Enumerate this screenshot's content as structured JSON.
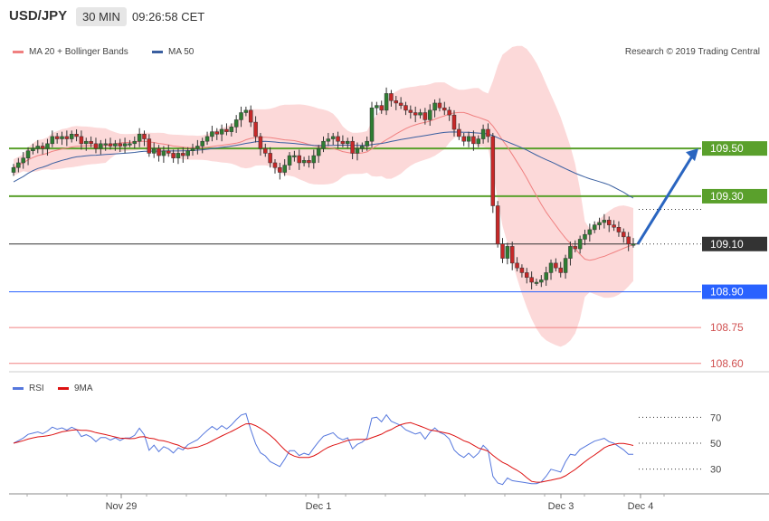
{
  "header": {
    "symbol": "USD/JPY",
    "timeframe": "30 MIN",
    "time": "09:26:58 CET"
  },
  "legend": {
    "ma20_label": "MA 20 + Bollinger Bands",
    "ma50_label": "MA 50",
    "ma20_color": "#f08080",
    "ma50_color": "#3a5fa0"
  },
  "credit": "Research © 2019 Trading Central",
  "rsi_legend": {
    "rsi_label": "RSI",
    "ma_label": "9MA",
    "rsi_color": "#5577dd",
    "ma_color": "#dd1111"
  },
  "levels": [
    {
      "value": "109.50",
      "kind": "resistance",
      "color": "#5aa02c"
    },
    {
      "value": "109.30",
      "kind": "resistance",
      "color": "#5aa02c"
    },
    {
      "value": "109.10",
      "kind": "current",
      "color": "#333333"
    },
    {
      "value": "108.90",
      "kind": "support",
      "color": "#2962ff"
    },
    {
      "value": "108.75",
      "kind": "support",
      "color": "#f08080"
    },
    {
      "value": "108.60",
      "kind": "support",
      "color": "#f08080"
    }
  ],
  "chart_data": {
    "type": "candlestick",
    "price_range": [
      108.55,
      109.97
    ],
    "x_labels": [
      "Nov 29",
      "Dec 1",
      "Dec 3",
      "Dec 4"
    ],
    "rsi_ticks": [
      "70",
      "50",
      "30"
    ],
    "rsi_range": [
      15,
      85
    ],
    "close": [
      109.42,
      109.44,
      109.46,
      109.49,
      109.5,
      109.51,
      109.5,
      109.52,
      109.55,
      109.54,
      109.55,
      109.54,
      109.56,
      109.55,
      109.52,
      109.53,
      109.52,
      109.5,
      109.52,
      109.52,
      109.51,
      109.52,
      109.51,
      109.52,
      109.52,
      109.53,
      109.56,
      109.54,
      109.48,
      109.5,
      109.47,
      109.49,
      109.48,
      109.46,
      109.48,
      109.47,
      109.49,
      109.5,
      109.51,
      109.53,
      109.55,
      109.57,
      109.56,
      109.58,
      109.57,
      109.59,
      109.62,
      109.65,
      109.66,
      109.61,
      109.55,
      109.5,
      109.48,
      109.44,
      109.42,
      109.4,
      109.43,
      109.47,
      109.47,
      109.44,
      109.45,
      109.44,
      109.47,
      109.5,
      109.53,
      109.54,
      109.55,
      109.53,
      109.52,
      109.53,
      109.48,
      109.5,
      109.51,
      109.53,
      109.67,
      109.68,
      109.66,
      109.73,
      109.7,
      109.69,
      109.68,
      109.66,
      109.65,
      109.64,
      109.65,
      109.62,
      109.66,
      109.69,
      109.67,
      109.66,
      109.64,
      109.58,
      109.55,
      109.53,
      109.55,
      109.52,
      109.54,
      109.58,
      109.55,
      109.26,
      109.1,
      109.04,
      109.09,
      109.02,
      109.0,
      108.98,
      108.96,
      108.94,
      108.94,
      108.95,
      108.98,
      109.02,
      109.0,
      108.98,
      109.04,
      109.09,
      109.08,
      109.12,
      109.14,
      109.16,
      109.18,
      109.19,
      109.2,
      109.18,
      109.17,
      109.15,
      109.13,
      109.1,
      109.1
    ]
  }
}
